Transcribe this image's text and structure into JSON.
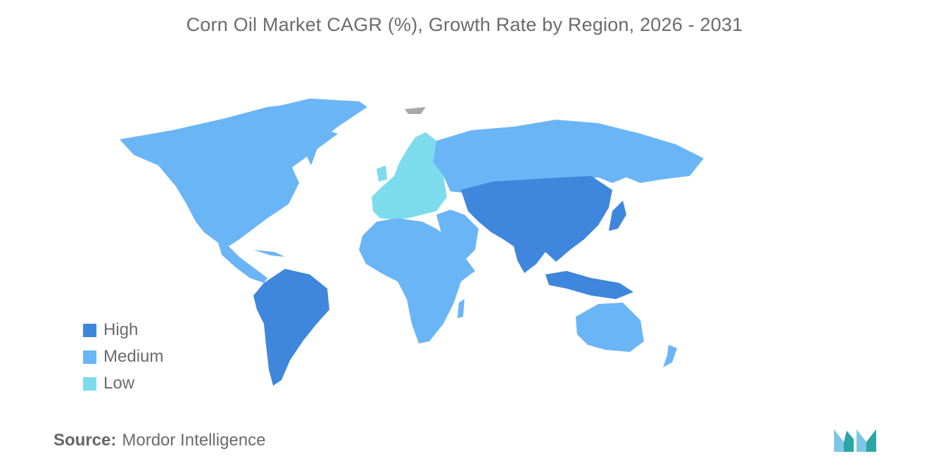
{
  "title": "Corn Oil Market CAGR (%), Growth Rate by Region, 2026 - 2031",
  "colors": {
    "high": "#3f86dd",
    "medium": "#6ab5f5",
    "low": "#7cdcee",
    "nodata": "#a9a9a9"
  },
  "legend": [
    {
      "label": "High",
      "level": "high"
    },
    {
      "label": "Medium",
      "level": "medium"
    },
    {
      "label": "Low",
      "level": "low"
    }
  ],
  "regions": {
    "north_america": "medium",
    "south_america": "high",
    "europe": "low",
    "russia": "medium",
    "middle_east_africa": "medium",
    "asia_pacific": "high",
    "australia_new_zealand": "medium"
  },
  "source": {
    "label": "Source:",
    "value": "Mordor Intelligence"
  }
}
